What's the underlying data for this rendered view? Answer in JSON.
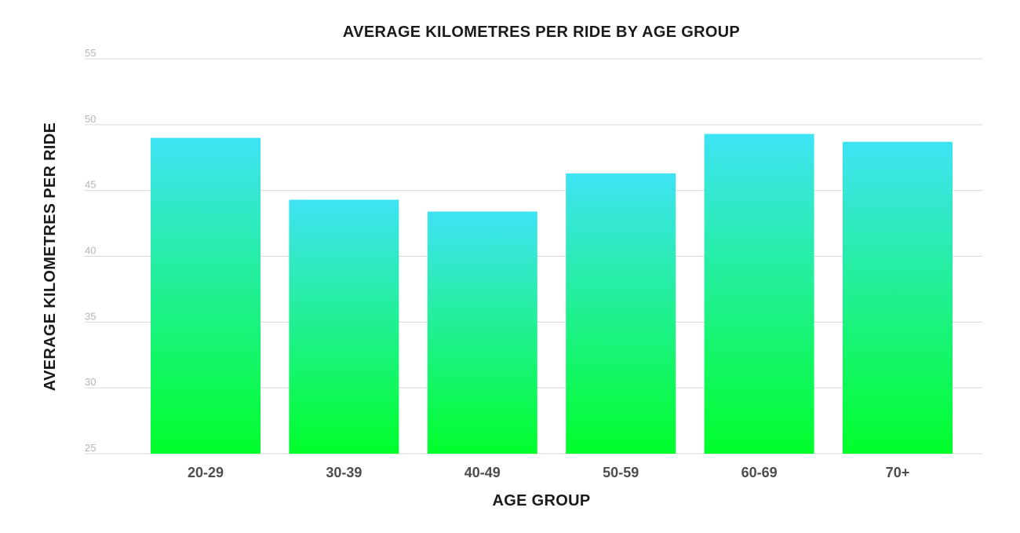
{
  "chart_data": {
    "type": "bar",
    "title": "AVERAGE KILOMETRES PER RIDE BY AGE GROUP",
    "xlabel": "AGE GROUP",
    "ylabel": "AVERAGE KILOMETRES PER RIDE",
    "categories": [
      "20-29",
      "30-39",
      "40-49",
      "50-59",
      "60-69",
      "70+"
    ],
    "values": [
      49.0,
      44.3,
      43.4,
      46.3,
      49.3,
      48.7
    ],
    "ylim": [
      25,
      55
    ],
    "yticks": [
      "25",
      "30",
      "35",
      "40",
      "45",
      "50",
      "55"
    ],
    "grid": true,
    "colors": {
      "bar_top": "#3fe3f5",
      "bar_bottom": "#00ff2a",
      "grid": "#d9d9d9"
    }
  }
}
